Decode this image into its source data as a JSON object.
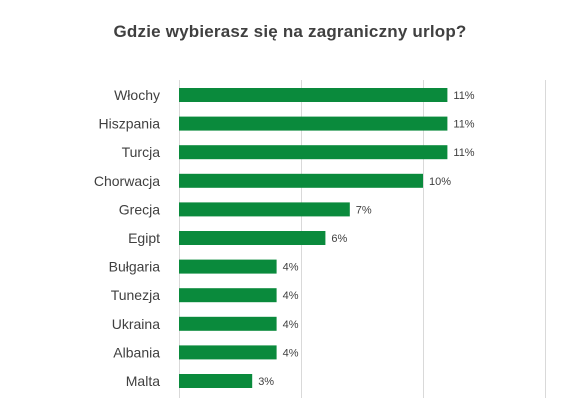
{
  "chart_data": {
    "type": "bar",
    "orientation": "horizontal",
    "title": "Gdzie wybierasz  się na zagraniczny urlop?",
    "categories": [
      "Włochy",
      "Hiszpania",
      "Turcja",
      "Chorwacja",
      "Grecja",
      "Egipt",
      "Bułgaria",
      "Tunezja",
      "Ukraina",
      "Albania",
      "Malta"
    ],
    "values": [
      11,
      11,
      11,
      10,
      7,
      6,
      4,
      4,
      4,
      4,
      3
    ],
    "value_labels": [
      "11%",
      "11%",
      "11%",
      "10%",
      "7%",
      "6%",
      "4%",
      "4%",
      "4%",
      "4%",
      "3%"
    ],
    "unit": "%",
    "xlim": [
      0,
      15
    ],
    "x_gridlines": [
      0,
      5,
      10,
      15
    ],
    "grid": true,
    "bar_color": "#0a8a3c",
    "grid_color": "#d9d9d9",
    "text_color": "#404040",
    "legend": "none"
  }
}
